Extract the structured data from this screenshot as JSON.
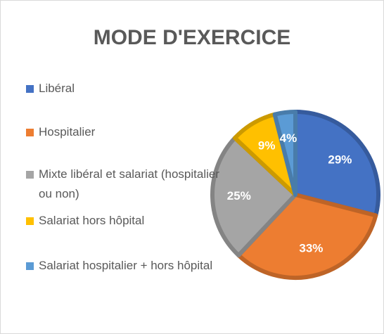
{
  "chart_data": {
    "type": "pie",
    "title": "MODE D'EXERCICE",
    "categories": [
      "Libéral",
      "Hospitalier",
      "Mixte libéral et salariat (hospitalier ou non)",
      "Salariat hors hôpital",
      "Salariat hospitalier + hors hôpital"
    ],
    "values": [
      29,
      33,
      25,
      9,
      4
    ],
    "value_labels": [
      "29%",
      "33%",
      "25%",
      "9%",
      "4%"
    ],
    "colors": [
      "#4472c4",
      "#ed7d31",
      "#a5a5a5",
      "#ffc000",
      "#5b9bd5"
    ],
    "legend": "left"
  }
}
